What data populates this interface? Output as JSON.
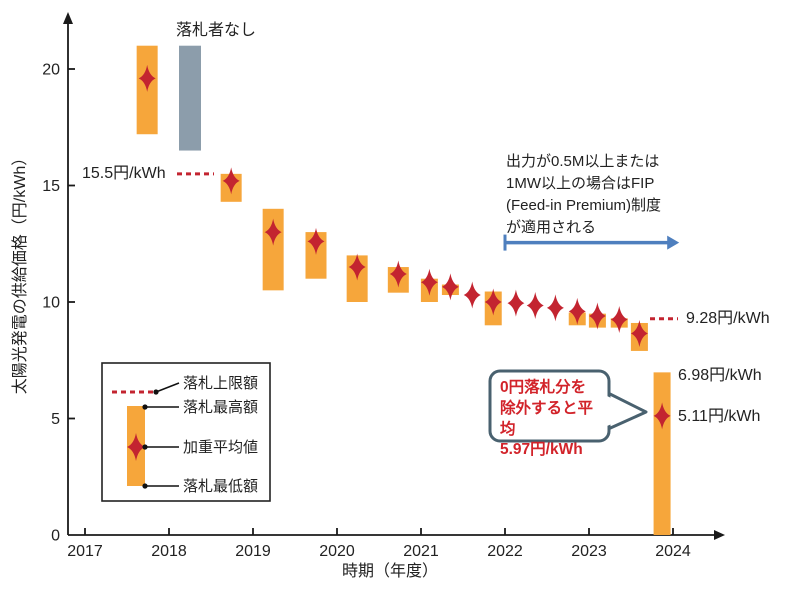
{
  "colors": {
    "bar_orange": "#F6A63B",
    "no_winner_gray": "#8C9DAB",
    "marker_red": "#C32430",
    "dashed_red": "#C32430",
    "arrow_blue": "#4E7FBE",
    "bubble_border": "#49616F",
    "bubble_text_red": "#D2232A",
    "axis_black": "#1A1A1A"
  },
  "axes": {
    "y_title": "太陽光発電の供給価格（円/kWh）",
    "x_title": "時期（年度）"
  },
  "annotations": {
    "no_winner": "落札者なし",
    "ceiling_2018": "15.5円/kWh",
    "ceiling_2024": "9.28円/kWh",
    "max_2024": "6.98円/kWh",
    "avg_2024": "5.11円/kWh",
    "fip_note": "出力が0.5M以上または\n1MW以上の場合はFIP\n(Feed-in Premium)制度\nが適用される",
    "zero_bid_note": "0円落札分を\n除外すると平均\n5.97円/kWh"
  },
  "legend": {
    "items": [
      {
        "label": "落札上限額",
        "symbol": "red-dashed-line"
      },
      {
        "label": "落札最高額",
        "symbol": "bar-top"
      },
      {
        "label": "加重平均値",
        "symbol": "red-star"
      },
      {
        "label": "落札最低額",
        "symbol": "bar-bottom"
      }
    ]
  },
  "chart_data": {
    "type": "bar",
    "subtype": "floating range bars (solar auction bid range) with weighted-average star markers",
    "title": "",
    "xlabel": "時期（年度）",
    "ylabel": "太陽光発電の供給価格（円/kWh）",
    "xlim": [
      2016.8,
      2024.6
    ],
    "ylim": [
      0,
      22.3
    ],
    "x_ticks": [
      2017,
      2018,
      2019,
      2020,
      2021,
      2022,
      2023,
      2024
    ],
    "y_ticks": [
      0,
      5,
      10,
      15,
      20
    ],
    "grid": false,
    "legend_position": "lower-left box",
    "auctions": [
      {
        "pos": 2017.74,
        "low": 17.2,
        "high": 21.0,
        "avg": 19.6,
        "kind": "range"
      },
      {
        "pos": 2018.25,
        "low": 16.5,
        "high": 21.0,
        "avg": null,
        "kind": "no_winner"
      },
      {
        "pos": 2018.74,
        "low": 14.3,
        "high": 15.5,
        "avg": 15.2,
        "kind": "range"
      },
      {
        "pos": 2019.24,
        "low": 10.5,
        "high": 14.0,
        "avg": 13.0,
        "kind": "range"
      },
      {
        "pos": 2019.75,
        "low": 11.0,
        "high": 13.0,
        "avg": 12.6,
        "kind": "range"
      },
      {
        "pos": 2020.24,
        "low": 10.0,
        "high": 12.0,
        "avg": 11.5,
        "kind": "range"
      },
      {
        "pos": 2020.73,
        "low": 10.4,
        "high": 11.5,
        "avg": 11.2,
        "kind": "range"
      },
      {
        "pos": 2021.1,
        "low": 10.0,
        "high": 11.0,
        "avg": 10.85,
        "kind": "range"
      },
      {
        "pos": 2021.35,
        "low": 10.3,
        "high": 10.75,
        "avg": 10.65,
        "kind": "range"
      },
      {
        "pos": 2021.61,
        "low": null,
        "high": null,
        "avg": 10.3,
        "kind": "avg_only"
      },
      {
        "pos": 2021.86,
        "low": 9.0,
        "high": 10.45,
        "avg": 10.0,
        "kind": "range"
      },
      {
        "pos": 2022.13,
        "low": null,
        "high": null,
        "avg": 9.95,
        "kind": "avg_only"
      },
      {
        "pos": 2022.36,
        "low": null,
        "high": null,
        "avg": 9.85,
        "kind": "avg_only"
      },
      {
        "pos": 2022.6,
        "low": null,
        "high": null,
        "avg": 9.75,
        "kind": "avg_only"
      },
      {
        "pos": 2022.86,
        "low": 9.0,
        "high": 9.55,
        "avg": 9.6,
        "kind": "range"
      },
      {
        "pos": 2023.1,
        "low": 8.9,
        "high": 9.5,
        "avg": 9.4,
        "kind": "range"
      },
      {
        "pos": 2023.36,
        "low": 8.9,
        "high": 9.3,
        "avg": 9.25,
        "kind": "range"
      },
      {
        "pos": 2023.6,
        "low": 7.9,
        "high": 9.1,
        "avg": 8.65,
        "kind": "range"
      },
      {
        "pos": 2023.87,
        "low": 0.0,
        "high": 6.98,
        "avg": 5.11,
        "kind": "range"
      }
    ],
    "ceiling_lines": [
      {
        "value": 15.5,
        "label": "15.5円/kWh"
      },
      {
        "value": 9.28,
        "label": "9.28円/kWh"
      }
    ],
    "fip_arrow": {
      "from_year": 2022.0,
      "to_year": 2024.05,
      "at_value": 12.55
    }
  }
}
